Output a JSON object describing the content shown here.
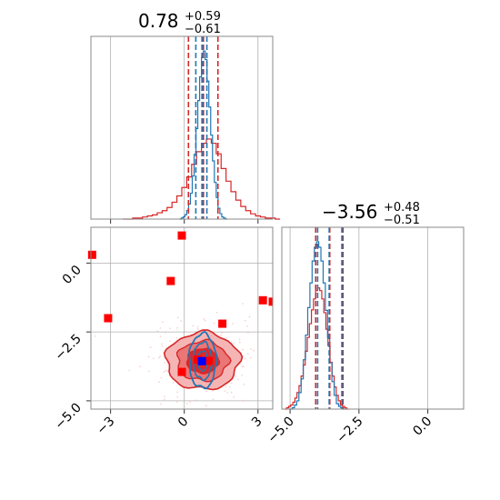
{
  "chart_data": {
    "type": "corner",
    "parameters": [
      {
        "title_value": "0.78",
        "title_plus": "+0.59",
        "title_minus": "−0.61"
      },
      {
        "title_value": "−3.56",
        "title_plus": "+0.48",
        "title_minus": "−0.51"
      }
    ],
    "ticks": {
      "p0": [
        -3,
        0,
        3
      ],
      "p0_labels": [
        "−3",
        "0",
        "3"
      ],
      "p1": [
        0.0,
        -2.5,
        -5.0
      ],
      "p1_labels": [
        "0.0",
        "−2.5",
        "−5.0"
      ],
      "hist2_x": [
        -5.0,
        -2.5,
        0.0
      ],
      "hist2_x_labels": [
        "−5.0",
        "−2.5",
        "0.0"
      ]
    },
    "ranges": {
      "p0": [
        -3.8,
        3.6
      ],
      "p1": [
        -5.3,
        1.3
      ],
      "hist2_x": [
        -5.3,
        1.3
      ]
    },
    "hist1": {
      "red_quantiles": [
        0.17,
        0.78,
        1.37
      ],
      "blue_quantiles": [
        0.47,
        0.72,
        0.92
      ],
      "red_counts": [
        0,
        0,
        1,
        1,
        2,
        3,
        4,
        6,
        8,
        11,
        16,
        22,
        30,
        40,
        52,
        64,
        72,
        76,
        72,
        62,
        48,
        36,
        26,
        18,
        12,
        8,
        5,
        3,
        2,
        1,
        1,
        0
      ],
      "red_x_start": -2.5,
      "red_x_step": 0.2,
      "blue_counts": [
        0,
        1,
        2,
        4,
        8,
        14,
        24,
        40,
        60,
        84,
        110,
        132,
        150,
        156,
        148,
        128,
        104,
        78,
        54,
        34,
        20,
        10,
        5,
        2,
        1,
        0
      ],
      "blue_x_start": -0.2,
      "blue_x_step": 0.075
    },
    "hist2": {
      "red_quantiles": [
        -4.07,
        -3.56,
        -3.08
      ],
      "blue_quantiles": [
        -4.0,
        -3.58,
        -3.12
      ],
      "red_counts": [
        0,
        1,
        2,
        3,
        5,
        8,
        12,
        17,
        24,
        32,
        42,
        52,
        62,
        72,
        80,
        86,
        88,
        86,
        80,
        70,
        58,
        46,
        34,
        24,
        16,
        10,
        6,
        3,
        2,
        1,
        0
      ],
      "red_x_start": -5.2,
      "red_x_step": 0.075,
      "blue_counts": [
        0,
        1,
        3,
        6,
        12,
        22,
        36,
        54,
        74,
        92,
        108,
        118,
        122,
        118,
        108,
        92,
        72,
        52,
        34,
        20,
        10,
        4,
        2,
        1,
        0
      ],
      "blue_x_start": -5.0,
      "blue_x_step": 0.08
    },
    "scatter": {
      "red_markers": [
        {
          "x": -3.75,
          "y": 0.3
        },
        {
          "x": -0.1,
          "y": 1.0
        },
        {
          "x": -0.55,
          "y": -0.65
        },
        {
          "x": -3.1,
          "y": -2.0
        },
        {
          "x": 3.2,
          "y": -1.35
        },
        {
          "x": 3.6,
          "y": -1.4
        },
        {
          "x": 1.55,
          "y": -2.2
        },
        {
          "x": -0.1,
          "y": -3.95
        },
        {
          "x": 1.0,
          "y": -3.55
        },
        {
          "x": 0.55,
          "y": -3.5
        }
      ],
      "blue_marker": {
        "x": 0.72,
        "y": -3.56
      },
      "red_contour_center": {
        "x": 0.75,
        "y": -3.55
      },
      "red_contour_sigmas": {
        "x": 0.65,
        "y": 0.45
      },
      "blue_contour_sigmas": {
        "x": 0.25,
        "y": 0.45
      }
    },
    "colors": {
      "red": "#d62728",
      "blue": "#1f77b4",
      "marker_red": "#ff0000",
      "marker_blue": "#0000ff",
      "grid": "#b0b0b0",
      "axis": "#888888"
    },
    "grid": true
  }
}
